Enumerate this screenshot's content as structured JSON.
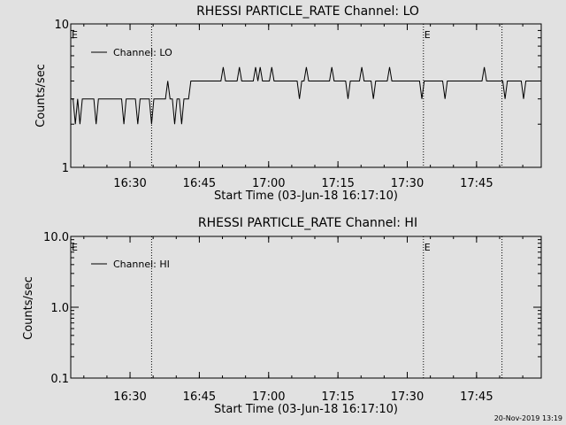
{
  "chart_data": [
    {
      "type": "line",
      "title": "RHESSI PARTICLE_RATE Channel: LO",
      "ylabel": "Counts/sec",
      "xlabel": "Start Time (03-Jun-18 16:17:10)",
      "yscale": "log",
      "ylim": [
        1,
        10
      ],
      "yticks": [
        "10",
        "1"
      ],
      "xlim": [
        "16:17:10",
        "17:59:00"
      ],
      "xticks": [
        "16:30",
        "16:45",
        "17:00",
        "17:15",
        "17:30",
        "17:45"
      ],
      "legend": {
        "label": "Channel: LO",
        "placement": "top-left"
      },
      "markers": [
        {
          "label": "E",
          "time": "16:17:10"
        },
        {
          "label": "E",
          "time": "17:33:30"
        }
      ],
      "vlines": [
        "16:34:40",
        "17:33:30",
        "17:50:30"
      ],
      "series": [
        {
          "name": "Channel: LO",
          "start": "16:17:10",
          "step_seconds": 30,
          "values": [
            3,
            3,
            2,
            3,
            2,
            3,
            3,
            3,
            3,
            3,
            3,
            2,
            3,
            3,
            3,
            3,
            3,
            3,
            3,
            3,
            3,
            3,
            3,
            2,
            3,
            3,
            3,
            3,
            3,
            2,
            3,
            3,
            3,
            3,
            3,
            2,
            3,
            3,
            3,
            3,
            3,
            3,
            4,
            3,
            3,
            2,
            3,
            3,
            2,
            3,
            3,
            3,
            4,
            4,
            4,
            4,
            4,
            4,
            4,
            4,
            4,
            4,
            4,
            4,
            4,
            4,
            5,
            4,
            4,
            4,
            4,
            4,
            4,
            5,
            4,
            4,
            4,
            4,
            4,
            4,
            5,
            4,
            5,
            4,
            4,
            4,
            4,
            5,
            4,
            4,
            4,
            4,
            4,
            4,
            4,
            4,
            4,
            4,
            4,
            3,
            4,
            4,
            5,
            4,
            4,
            4,
            4,
            4,
            4,
            4,
            4,
            4,
            4,
            5,
            4,
            4,
            4,
            4,
            4,
            4,
            3,
            4,
            4,
            4,
            4,
            4,
            5,
            4,
            4,
            4,
            4,
            3,
            4,
            4,
            4,
            4,
            4,
            4,
            5,
            4,
            4,
            4,
            4,
            4,
            4,
            4,
            4,
            4,
            4,
            4,
            4,
            4,
            3,
            4,
            4,
            4,
            4,
            4,
            4,
            4,
            4,
            4,
            3,
            4,
            4,
            4,
            4,
            4,
            4,
            4,
            4,
            4,
            4,
            4,
            4,
            4,
            4,
            4,
            4,
            5,
            4,
            4,
            4,
            4,
            4,
            4,
            4,
            4,
            3,
            4,
            4,
            4,
            4,
            4,
            4,
            4,
            3,
            4,
            4,
            4,
            4,
            4,
            4,
            4,
            4,
            4,
            4,
            4,
            4,
            4,
            4,
            5,
            4,
            4,
            4,
            4,
            4,
            4,
            3,
            4,
            4,
            4,
            4,
            4,
            4,
            4,
            4,
            4,
            4,
            4,
            4,
            4,
            3,
            4,
            4,
            4,
            4,
            4,
            4,
            4,
            4,
            4,
            4,
            4,
            4,
            3,
            4,
            4,
            4,
            4,
            4,
            4,
            5,
            4,
            4,
            4,
            4,
            4,
            4,
            4,
            4,
            4,
            4,
            3,
            4,
            4,
            4,
            4,
            4,
            4,
            4,
            4,
            4,
            4,
            4,
            4,
            4,
            3,
            4,
            4,
            4,
            4,
            4,
            4,
            4,
            4,
            4,
            4,
            4,
            4,
            3,
            4,
            4,
            3,
            4,
            4,
            4,
            4,
            4,
            4,
            4,
            3,
            4,
            4,
            4,
            4,
            4,
            4,
            4,
            4,
            4,
            5,
            4,
            4,
            4,
            4,
            3,
            4,
            4,
            4,
            4,
            4,
            4,
            4,
            4,
            4,
            4,
            4,
            4,
            4,
            4,
            4,
            4,
            4,
            4,
            4,
            4,
            4,
            3,
            4,
            4,
            4,
            4,
            4,
            4,
            4,
            4,
            4,
            4,
            4,
            3,
            4,
            4,
            4,
            4,
            4,
            4,
            5,
            4,
            4,
            4,
            4,
            4,
            4,
            4,
            4,
            4,
            4,
            3,
            4,
            4,
            4,
            4,
            4,
            4,
            4,
            4,
            4,
            4,
            3,
            4,
            4,
            4,
            4,
            4,
            4,
            4,
            4,
            4,
            4,
            4,
            4,
            4,
            4,
            4,
            5,
            4,
            4,
            4,
            4,
            4,
            4,
            4,
            4,
            4,
            4,
            4,
            4,
            4,
            3,
            4,
            4,
            4,
            4,
            4,
            4,
            4,
            4,
            4,
            4,
            4,
            4,
            4,
            3,
            4,
            4,
            4,
            4,
            4,
            4,
            4,
            4,
            4,
            4,
            4,
            4,
            4,
            4,
            5,
            4,
            4,
            4,
            4,
            4,
            4,
            4,
            3,
            4,
            4,
            4,
            4,
            4,
            4,
            4,
            4,
            4,
            4,
            4,
            4,
            4,
            4,
            3,
            4,
            4,
            4,
            4,
            4,
            4,
            4,
            4,
            4,
            4,
            4,
            4,
            4,
            4,
            4,
            4,
            4,
            4,
            4,
            4,
            4,
            3,
            4,
            4,
            4,
            4,
            4,
            4,
            4,
            3,
            3,
            3,
            3,
            3,
            3,
            3,
            3,
            3,
            3,
            3,
            3,
            3,
            3,
            3,
            3,
            3,
            3,
            3,
            3,
            3,
            3,
            3,
            3,
            3,
            3,
            3,
            3,
            3,
            2,
            3,
            2,
            3,
            3,
            3,
            3,
            3,
            3,
            3,
            2,
            3,
            3,
            3,
            3,
            3,
            3,
            3,
            2,
            3,
            3,
            3,
            3,
            3,
            3,
            3,
            3,
            3,
            3,
            3,
            2,
            3,
            2,
            3,
            3,
            3,
            3,
            3,
            3,
            3,
            3,
            3,
            3,
            3,
            2,
            3,
            3,
            3,
            3,
            3,
            3,
            3,
            3,
            3,
            3,
            2,
            3,
            3,
            3,
            3,
            3,
            3,
            3,
            3,
            3,
            3,
            3,
            3,
            3,
            3,
            3,
            3,
            3,
            3,
            3,
            3,
            3,
            3,
            3,
            3,
            3,
            3,
            3,
            3,
            3,
            3,
            3,
            3,
            3,
            3,
            3,
            3,
            3,
            3,
            3,
            3,
            3,
            3,
            3,
            3,
            3,
            3,
            3,
            3,
            3,
            3,
            3,
            3,
            3,
            3,
            3,
            3,
            3,
            3,
            3,
            3,
            3,
            3,
            3,
            3,
            3,
            3,
            3,
            3,
            3,
            3,
            3,
            3,
            3,
            3,
            3,
            3,
            3,
            3,
            3,
            3,
            3,
            3,
            3,
            3,
            3,
            3,
            3,
            3,
            3,
            3,
            3,
            3,
            3,
            3,
            3,
            3
          ]
        }
      ]
    },
    {
      "type": "line",
      "title": "RHESSI PARTICLE_RATE Channel: HI",
      "ylabel": "Counts/sec",
      "xlabel": "Start Time (03-Jun-18 16:17:10)",
      "yscale": "log",
      "ylim": [
        0.1,
        10
      ],
      "yticks": [
        "10.0",
        "1.0",
        "0.1"
      ],
      "xlim": [
        "16:17:10",
        "17:59:00"
      ],
      "xticks": [
        "16:30",
        "16:45",
        "17:00",
        "17:15",
        "17:30",
        "17:45"
      ],
      "legend": {
        "label": "Channel: HI",
        "placement": "top-left"
      },
      "markers": [
        {
          "label": "E",
          "time": "16:17:10"
        },
        {
          "label": "E",
          "time": "17:33:30"
        }
      ],
      "vlines": [
        "16:34:40",
        "17:33:30",
        "17:50:30"
      ],
      "series": [
        {
          "name": "Channel: HI",
          "values": []
        }
      ]
    }
  ],
  "footer": {
    "timestamp": "20-Nov-2019 13:19"
  }
}
